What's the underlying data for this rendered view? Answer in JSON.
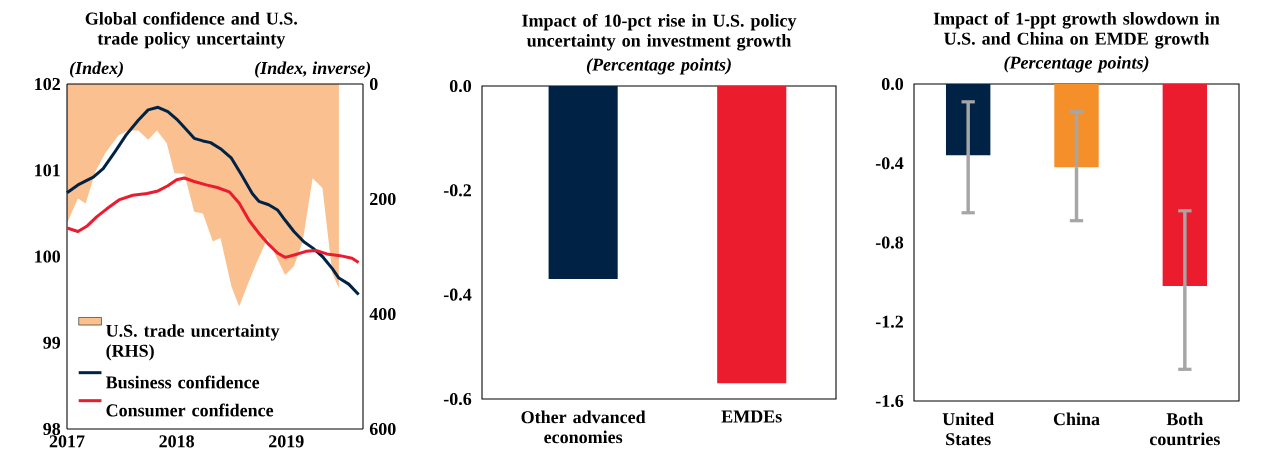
{
  "chart_data": [
    {
      "type": "line",
      "title": "Global confidence and U.S. trade policy uncertainty",
      "ylabel": "(Index)",
      "y2label": "(Index, inverse)",
      "xlim": [
        2017,
        2019.7
      ],
      "xticks": [
        2017,
        2018,
        2019
      ],
      "ylim": [
        98,
        102
      ],
      "yticks": [
        98,
        99,
        100,
        101,
        102
      ],
      "y2lim": [
        600,
        0
      ],
      "y2ticks": [
        0,
        200,
        400,
        600
      ],
      "legend": "bottom left",
      "series": [
        {
          "name": "U.S. trade uncertainty (RHS)",
          "type": "area",
          "axis": "y2",
          "color": "#FAC090",
          "x": [
            2017.0,
            2017.1,
            2017.17,
            2017.26,
            2017.35,
            2017.47,
            2017.56,
            2017.65,
            2017.74,
            2017.82,
            2017.91,
            2017.98,
            2018.07,
            2018.16,
            2018.24,
            2018.33,
            2018.4,
            2018.5,
            2018.57,
            2018.66,
            2018.74,
            2018.83,
            2018.9,
            2018.99,
            2019.07,
            2019.15,
            2019.24,
            2019.33,
            2019.42,
            2019.48
          ],
          "values": [
            242,
            199,
            208,
            152,
            120,
            89,
            81,
            81,
            97,
            81,
            103,
            155,
            156,
            222,
            225,
            274,
            268,
            352,
            387,
            343,
            306,
            268,
            297,
            332,
            317,
            274,
            164,
            181,
            329,
            355
          ]
        },
        {
          "name": "Business confidence",
          "color": "#002345",
          "x": [
            2017.0,
            2017.1,
            2017.24,
            2017.33,
            2017.44,
            2017.54,
            2017.65,
            2017.74,
            2017.83,
            2017.92,
            2018.01,
            2018.09,
            2018.16,
            2018.24,
            2018.31,
            2018.4,
            2018.5,
            2018.59,
            2018.69,
            2018.75,
            2018.84,
            2018.92,
            2018.99,
            2019.07,
            2019.16,
            2019.24,
            2019.33,
            2019.42,
            2019.48,
            2019.57,
            2019.66
          ],
          "values": [
            100.74,
            100.83,
            100.92,
            101.02,
            101.22,
            101.41,
            101.58,
            101.7,
            101.73,
            101.68,
            101.58,
            101.47,
            101.37,
            101.34,
            101.32,
            101.25,
            101.14,
            100.95,
            100.73,
            100.64,
            100.6,
            100.54,
            100.42,
            100.29,
            100.17,
            100.1,
            100.0,
            99.86,
            99.75,
            99.68,
            99.56
          ]
        },
        {
          "name": "Consumer confidence",
          "color": "#EB1C2D",
          "x": [
            2017.0,
            2017.1,
            2017.18,
            2017.27,
            2017.36,
            2017.48,
            2017.6,
            2017.73,
            2017.83,
            2017.92,
            2018.0,
            2018.07,
            2018.16,
            2018.27,
            2018.37,
            2018.48,
            2018.57,
            2018.66,
            2018.75,
            2018.84,
            2018.92,
            2018.99,
            2019.08,
            2019.18,
            2019.27,
            2019.37,
            2019.49,
            2019.6,
            2019.66
          ],
          "values": [
            100.33,
            100.29,
            100.35,
            100.46,
            100.55,
            100.66,
            100.71,
            100.73,
            100.76,
            100.82,
            100.89,
            100.91,
            100.87,
            100.83,
            100.8,
            100.75,
            100.62,
            100.42,
            100.27,
            100.14,
            100.04,
            99.99,
            100.02,
            100.06,
            100.07,
            100.03,
            100.01,
            99.98,
            99.93
          ]
        }
      ]
    },
    {
      "type": "bar",
      "title": "Impact of 10-pct rise in U.S. policy uncertainty on investment growth",
      "subtitle": "(Percentage points)",
      "categories": [
        "Other advanced economies",
        "EMDEs"
      ],
      "values": [
        -0.37,
        -0.57
      ],
      "colors": [
        "#002345",
        "#EB1C2D"
      ],
      "ylim": [
        -0.6,
        0
      ],
      "yticks": [
        -0.6,
        -0.4,
        -0.2,
        {
          "value": 0,
          "label": "0.0"
        }
      ]
    },
    {
      "type": "bar",
      "title": "Impact of 1-ppt growth slowdown in U.S. and China on EMDE growth",
      "subtitle": "(Percentage points)",
      "categories": [
        "United States",
        "China",
        "Both countries"
      ],
      "values": [
        -0.36,
        -0.42,
        -1.02
      ],
      "colors": [
        "#002345",
        "#F58F29",
        "#EB1C2D"
      ],
      "errors": [
        [
          -0.65,
          -0.09
        ],
        [
          -0.69,
          -0.14
        ],
        [
          -1.44,
          -0.64
        ]
      ],
      "ylim": [
        -1.6,
        0
      ],
      "yticks": [
        -1.6,
        -1.2,
        -0.8,
        -0.4,
        {
          "value": 0,
          "label": "0.0"
        }
      ]
    }
  ]
}
